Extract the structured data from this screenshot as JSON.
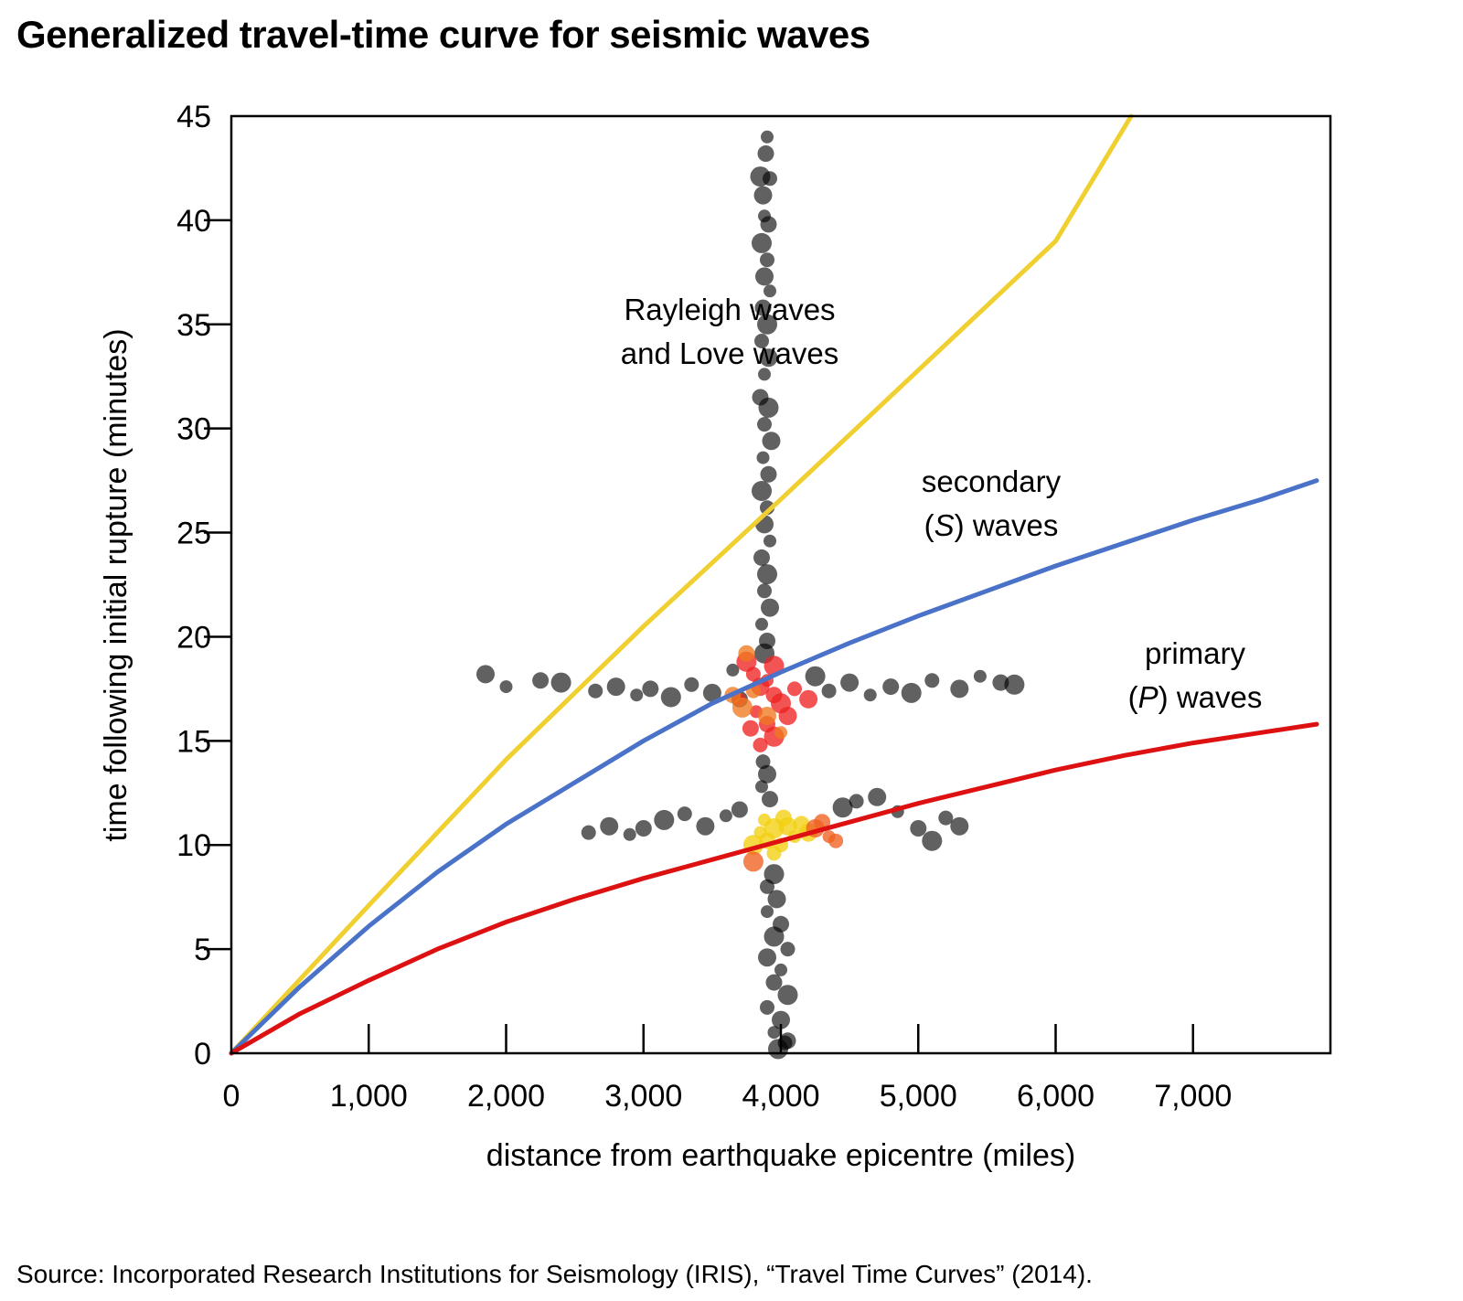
{
  "title": "Generalized travel-time curve for seismic waves",
  "source": "Source: Incorporated Research Institutions for Seismology (IRIS), “Travel Time Curves” (2014).",
  "chart_data": {
    "type": "line",
    "title": "Generalized travel-time curve for seismic waves",
    "xlabel": "distance from earthquake epicentre (miles)",
    "ylabel": "time following initial rupture (minutes)",
    "xlim": [
      0,
      8000
    ],
    "ylim": [
      0,
      45
    ],
    "xticks": [
      0,
      1000,
      2000,
      3000,
      4000,
      5000,
      6000,
      7000
    ],
    "xtick_labels": [
      "0",
      "1,000",
      "2,000",
      "3,000",
      "4,000",
      "5,000",
      "6,000",
      "7,000"
    ],
    "yticks": [
      0,
      5,
      10,
      15,
      20,
      25,
      30,
      35,
      40,
      45
    ],
    "ytick_labels": [
      "0",
      "5",
      "10",
      "15",
      "20",
      "25",
      "30",
      "35",
      "40",
      "45"
    ],
    "grid": false,
    "legend": "none",
    "series": [
      {
        "key": "surface",
        "label_lines": [
          "Rayleigh waves",
          "and Love waves"
        ],
        "color": "#f0d030",
        "x": [
          0,
          1000,
          2000,
          3000,
          4000,
          5000,
          6000,
          6550
        ],
        "y": [
          0,
          7.1,
          14.1,
          20.5,
          26.6,
          32.8,
          39.0,
          45.0
        ]
      },
      {
        "key": "s",
        "label_lines": [
          "secondary",
          "(S) waves"
        ],
        "color": "#4a72c8",
        "x": [
          0,
          500,
          1000,
          1500,
          2000,
          2500,
          3000,
          3500,
          4000,
          4500,
          5000,
          5500,
          6000,
          6500,
          7000,
          7500,
          7900
        ],
        "y": [
          0,
          3.2,
          6.1,
          8.7,
          11.0,
          13.0,
          15.0,
          16.8,
          18.3,
          19.7,
          21.0,
          22.2,
          23.4,
          24.5,
          25.6,
          26.6,
          27.5
        ]
      },
      {
        "key": "p",
        "label_lines": [
          "primary",
          "(P) waves"
        ],
        "color": "#dd1111",
        "x": [
          0,
          500,
          1000,
          1500,
          2000,
          2500,
          3000,
          3500,
          4000,
          4500,
          5000,
          5500,
          6000,
          6500,
          7000,
          7500,
          7900
        ],
        "y": [
          0,
          1.9,
          3.5,
          5.0,
          6.3,
          7.4,
          8.4,
          9.3,
          10.2,
          11.1,
          12.0,
          12.8,
          13.6,
          14.3,
          14.9,
          15.4,
          15.8
        ]
      }
    ],
    "scatter_groups": [
      {
        "name": "surface-wave arrivals",
        "color": "#000000",
        "points": [
          [
            3900,
            44
          ],
          [
            3890,
            43.2
          ],
          [
            3850,
            42.1
          ],
          [
            3920,
            42.0
          ],
          [
            3870,
            41.2
          ],
          [
            3880,
            40.2
          ],
          [
            3910,
            39.8
          ],
          [
            3860,
            38.9
          ],
          [
            3900,
            38.1
          ],
          [
            3880,
            37.3
          ],
          [
            3920,
            36.6
          ],
          [
            3870,
            35.8
          ],
          [
            3900,
            35.0
          ],
          [
            3860,
            34.2
          ],
          [
            3910,
            33.4
          ],
          [
            3880,
            32.6
          ],
          [
            3850,
            31.5
          ],
          [
            3910,
            31.0
          ],
          [
            3880,
            30.2
          ],
          [
            3930,
            29.4
          ],
          [
            3870,
            28.6
          ],
          [
            3910,
            27.8
          ],
          [
            3860,
            27.0
          ],
          [
            3900,
            26.2
          ],
          [
            3880,
            25.4
          ],
          [
            3920,
            24.6
          ],
          [
            3860,
            23.8
          ],
          [
            3900,
            23.0
          ],
          [
            3880,
            22.2
          ],
          [
            3920,
            21.4
          ],
          [
            3860,
            20.6
          ],
          [
            3900,
            19.8
          ],
          [
            3880,
            19.2
          ],
          [
            3870,
            14.0
          ],
          [
            3900,
            13.4
          ],
          [
            3860,
            12.8
          ],
          [
            3920,
            12.2
          ],
          [
            3950,
            8.6
          ],
          [
            3900,
            8.0
          ],
          [
            3970,
            7.4
          ],
          [
            3900,
            6.8
          ],
          [
            4000,
            6.2
          ],
          [
            3950,
            5.6
          ],
          [
            4050,
            5.0
          ],
          [
            3900,
            4.6
          ],
          [
            4000,
            4.0
          ],
          [
            3950,
            3.4
          ],
          [
            4050,
            2.8
          ],
          [
            3900,
            2.2
          ],
          [
            4000,
            1.6
          ],
          [
            3950,
            1.0
          ],
          [
            4050,
            0.6
          ],
          [
            3980,
            0.2
          ],
          [
            4030,
            0.5
          ]
        ]
      },
      {
        "name": "S-wave arrivals",
        "color": "#000000",
        "points": [
          [
            1850,
            18.2
          ],
          [
            2000,
            17.6
          ],
          [
            2250,
            17.9
          ],
          [
            2400,
            17.8
          ],
          [
            2650,
            17.4
          ],
          [
            2800,
            17.6
          ],
          [
            2950,
            17.2
          ],
          [
            3050,
            17.5
          ],
          [
            3200,
            17.1
          ],
          [
            3350,
            17.7
          ],
          [
            3500,
            17.3
          ],
          [
            3650,
            18.4
          ],
          [
            3700,
            17.0
          ],
          [
            4250,
            18.1
          ],
          [
            4350,
            17.4
          ],
          [
            4500,
            17.8
          ],
          [
            4650,
            17.2
          ],
          [
            4800,
            17.6
          ],
          [
            4950,
            17.3
          ],
          [
            5100,
            17.9
          ],
          [
            5300,
            17.5
          ],
          [
            5450,
            18.1
          ],
          [
            5600,
            17.8
          ],
          [
            5700,
            17.7
          ]
        ]
      },
      {
        "name": "P-wave arrivals",
        "color": "#000000",
        "points": [
          [
            2600,
            10.6
          ],
          [
            2750,
            10.9
          ],
          [
            2900,
            10.5
          ],
          [
            3000,
            10.8
          ],
          [
            3150,
            11.2
          ],
          [
            3300,
            11.5
          ],
          [
            3450,
            10.9
          ],
          [
            3600,
            11.4
          ],
          [
            3700,
            11.7
          ],
          [
            4450,
            11.8
          ],
          [
            4550,
            12.1
          ],
          [
            4700,
            12.3
          ],
          [
            4850,
            11.6
          ],
          [
            5000,
            10.8
          ],
          [
            5100,
            10.2
          ],
          [
            5200,
            11.3
          ],
          [
            5300,
            10.9
          ]
        ]
      },
      {
        "name": "S-wave cluster",
        "color": "#ee2222",
        "points": [
          [
            3750,
            18.8
          ],
          [
            3800,
            18.2
          ],
          [
            3850,
            17.6
          ],
          [
            3900,
            17.9
          ],
          [
            3950,
            17.2
          ],
          [
            4000,
            16.8
          ],
          [
            4100,
            17.5
          ],
          [
            4200,
            17.0
          ],
          [
            3820,
            16.4
          ],
          [
            3900,
            15.8
          ],
          [
            3950,
            15.2
          ],
          [
            3850,
            14.8
          ],
          [
            4050,
            16.2
          ],
          [
            3700,
            17.0
          ],
          [
            3780,
            15.6
          ],
          [
            3950,
            18.6
          ]
        ]
      },
      {
        "name": "S-wave cluster highlights",
        "color": "#f07820",
        "points": [
          [
            3650,
            17.2
          ],
          [
            3720,
            16.6
          ],
          [
            3800,
            17.4
          ],
          [
            3900,
            16.2
          ],
          [
            4000,
            15.4
          ],
          [
            3750,
            19.2
          ]
        ]
      },
      {
        "name": "P-wave cluster",
        "color": "#f2d010",
        "points": [
          [
            3850,
            10.6
          ],
          [
            3900,
            10.2
          ],
          [
            3950,
            10.8
          ],
          [
            4000,
            10.0
          ],
          [
            4050,
            10.9
          ],
          [
            4100,
            10.4
          ],
          [
            4150,
            11.0
          ],
          [
            3800,
            10.0
          ],
          [
            3950,
            9.6
          ],
          [
            4200,
            10.6
          ],
          [
            3880,
            11.2
          ],
          [
            4020,
            11.3
          ]
        ]
      },
      {
        "name": "P-wave cluster highlights",
        "color": "#f06020",
        "points": [
          [
            4250,
            10.8
          ],
          [
            4350,
            10.4
          ],
          [
            4300,
            11.1
          ],
          [
            3800,
            9.2
          ],
          [
            4400,
            10.2
          ]
        ]
      }
    ]
  }
}
